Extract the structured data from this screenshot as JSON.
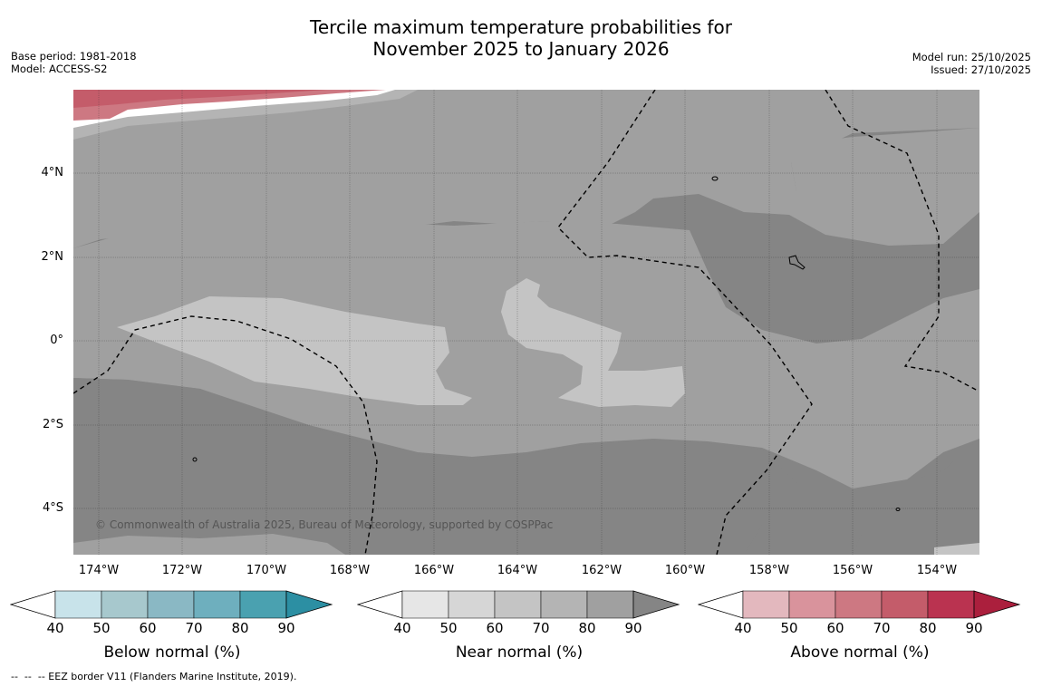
{
  "title_line1": "Tercile maximum temperature probabilities for",
  "title_line2": "November 2025 to January 2026",
  "base_period": "Base period: 1981-2018",
  "model": "Model: ACCESS-S2",
  "model_run": "Model run: 25/10/2025",
  "issued": "Issued: 27/10/2025",
  "copyright": "© Commonwealth of Australia 2025, Bureau of Meteorology, supported by COSPPac",
  "latitude_labels": [
    "4°N",
    "2°N",
    "0°",
    "2°S",
    "4°S"
  ],
  "longitude_labels": [
    "174°W",
    "172°W",
    "170°W",
    "168°W",
    "166°W",
    "164°W",
    "162°W",
    "160°W",
    "158°W",
    "156°W",
    "154°W"
  ],
  "colorbars": [
    {
      "title": "Below normal (%)",
      "ticks": [
        "40",
        "50",
        "60",
        "70",
        "80",
        "90"
      ],
      "colors": [
        "#ffffff",
        "#c8e3ea",
        "#a7c8cd",
        "#8ab8c4",
        "#6eafbe",
        "#4aa1b0",
        "#2c8fa3"
      ]
    },
    {
      "title": "Near normal (%)",
      "ticks": [
        "40",
        "50",
        "60",
        "70",
        "80",
        "90"
      ],
      "colors": [
        "#ffffff",
        "#e6e6e6",
        "#d6d6d6",
        "#c4c4c4",
        "#b4b4b4",
        "#a0a0a0",
        "#858585"
      ]
    },
    {
      "title": "Above normal (%)",
      "ticks": [
        "40",
        "50",
        "60",
        "70",
        "80",
        "90"
      ],
      "colors": [
        "#ffffff",
        "#e3b8be",
        "#d9939c",
        "#cd7882",
        "#c45c6a",
        "#ba3350",
        "#ab1f3d"
      ]
    }
  ],
  "footnote": "--  --  -- EEZ border V11 (Flanders Marine Institute, 2019)."
}
